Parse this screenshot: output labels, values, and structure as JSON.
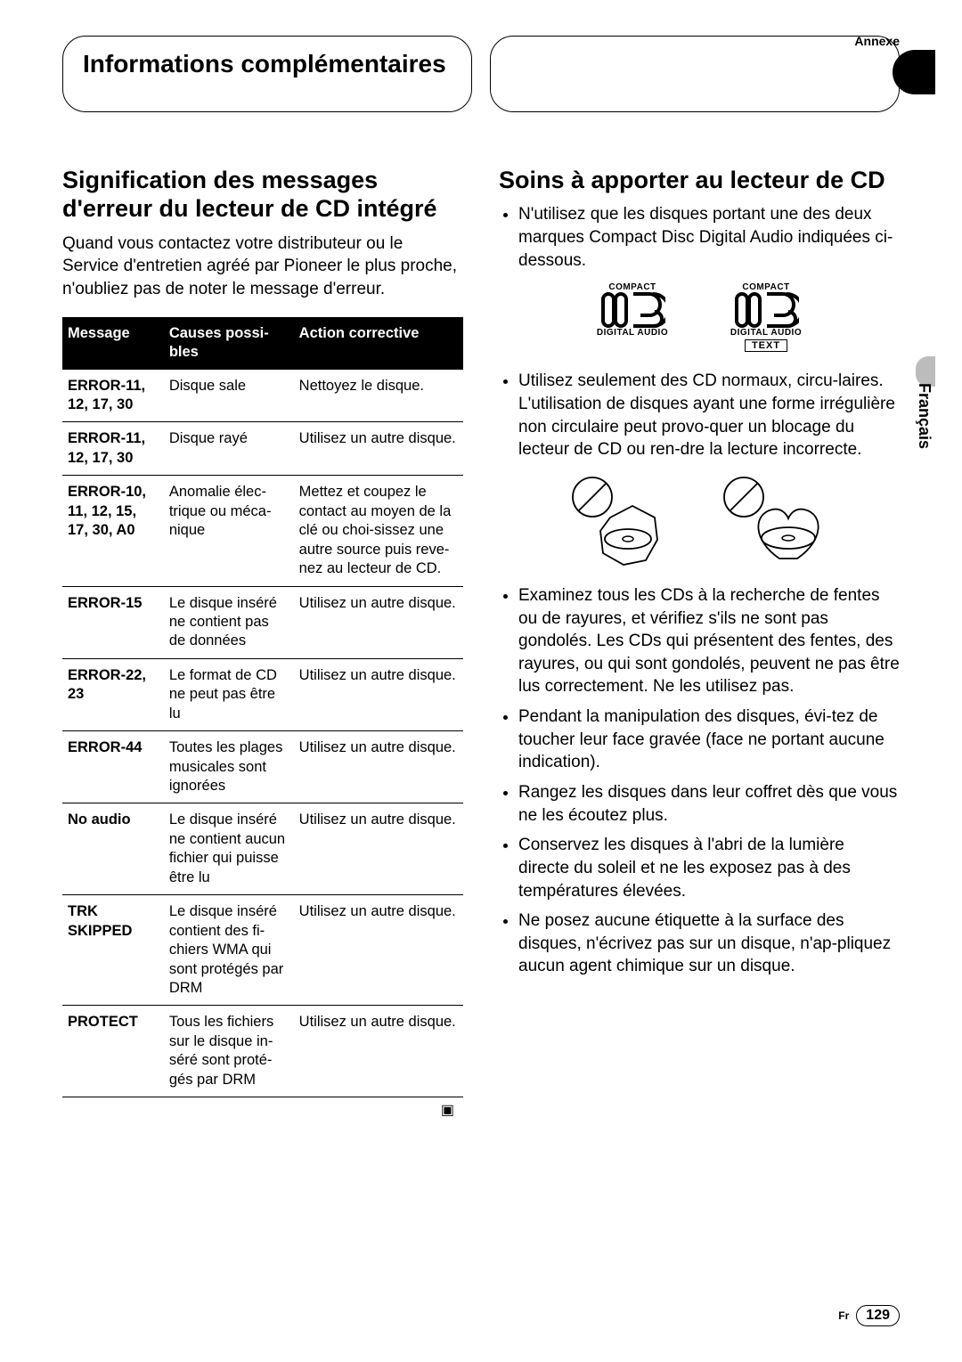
{
  "annexe": "Annexe",
  "header_left": "Informations complémentaires",
  "lang_label": "Français",
  "left": {
    "title": "Signification des messages d'erreur du lecteur de CD intégré",
    "intro": "Quand vous contactez votre distributeur ou le Service d'entretien agréé par Pioneer le plus proche, n'oubliez pas de noter le message d'erreur.",
    "head_msg": "Message",
    "head_cause": "Causes possi-bles",
    "head_action": "Action corrective",
    "rows": [
      {
        "m": "ERROR-11, 12, 17, 30",
        "c": "Disque sale",
        "a": "Nettoyez le disque."
      },
      {
        "m": "ERROR-11, 12, 17, 30",
        "c": "Disque rayé",
        "a": "Utilisez un autre disque."
      },
      {
        "m": "ERROR-10, 11, 12, 15, 17, 30, A0",
        "c": "Anomalie élec-trique ou méca-nique",
        "a": "Mettez et coupez le contact au moyen de la clé ou choi-sissez une autre source puis reve-nez au lecteur de CD."
      },
      {
        "m": "ERROR-15",
        "c": "Le disque inséré ne contient pas de données",
        "a": "Utilisez un autre disque."
      },
      {
        "m": "ERROR-22, 23",
        "c": "Le format de CD ne peut pas être lu",
        "a": "Utilisez un autre disque."
      },
      {
        "m": "ERROR-44",
        "c": "Toutes les plages musicales sont ignorées",
        "a": "Utilisez un autre disque."
      },
      {
        "m": "No audio",
        "c": "Le disque inséré ne contient aucun fichier qui puisse être lu",
        "a": "Utilisez un autre disque."
      },
      {
        "m": "TRK SKIPPED",
        "c": "Le disque inséré contient des fi-chiers WMA qui sont protégés par DRM",
        "a": "Utilisez un autre disque."
      },
      {
        "m": "PROTECT",
        "c": "Tous les fichiers sur le disque in-séré sont proté-gés par DRM",
        "a": "Utilisez un autre disque."
      }
    ]
  },
  "right": {
    "title": "Soins à apporter au lecteur de CD",
    "b1": "N'utilisez que les disques portant une des deux marques Compact Disc Digital Audio indiquées ci-dessous.",
    "logo_compact": "COMPACT",
    "logo_digital": "DIGITAL AUDIO",
    "logo_text": "TEXT",
    "b2": "Utilisez seulement des CD normaux, circu-laires. L'utilisation de disques ayant une forme irrégulière non circulaire peut provo-quer un blocage du lecteur de CD ou ren-dre la lecture incorrecte.",
    "b3": "Examinez tous les CDs à la recherche de fentes ou de rayures, et vérifiez s'ils ne sont pas gondolés. Les CDs qui présentent des fentes, des rayures, ou qui sont gondolés, peuvent ne pas être lus correctement. Ne les utilisez pas.",
    "b4": "Pendant la manipulation des disques, évi-tez de toucher leur face gravée (face ne portant aucune indication).",
    "b5": "Rangez les disques dans leur coffret dès que vous ne les écoutez plus.",
    "b6": "Conservez les disques à l'abri de la lumière directe du soleil et ne les exposez pas à des températures élevées.",
    "b7": "Ne posez aucune étiquette à la surface des disques, n'écrivez pas sur un disque, n'ap-pliquez aucun agent chimique sur un disque."
  },
  "footer": {
    "fr": "Fr",
    "page": "129"
  }
}
